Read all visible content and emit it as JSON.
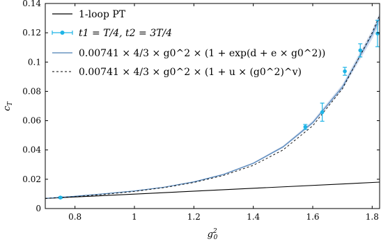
{
  "chart_data": {
    "type": "line",
    "xlabel": "g0^2",
    "ylabel": "c_T",
    "xlim": [
      0.7,
      1.825
    ],
    "ylim": [
      0,
      0.14
    ],
    "x_ticks": [
      0.8,
      1,
      1.2,
      1.4,
      1.6,
      1.8
    ],
    "x_tick_labels": [
      "0.8",
      "1",
      "1.2",
      "1.4",
      "1.6",
      "1.8"
    ],
    "y_ticks": [
      0,
      0.02,
      0.04,
      0.06,
      0.08,
      0.1,
      0.12,
      0.14
    ],
    "y_tick_labels": [
      "0",
      "0.02",
      "0.04",
      "0.06",
      "0.08",
      "0.1",
      "0.12",
      "0.14"
    ],
    "grid": false,
    "legend_position": "top-left",
    "colors": {
      "data": "#1eb4e6",
      "fit": "#4a7fb5",
      "band": "#c6d3ea",
      "pt": "#000000"
    },
    "legend": [
      {
        "key": "pt",
        "text": "1-loop PT"
      },
      {
        "key": "data",
        "text": "t1 = T/4, t2 = 3T/4"
      },
      {
        "key": "fit_exp",
        "text": "0.00741 × 4/3 × g0^2 × (1 + exp(d + e × g0^2))"
      },
      {
        "key": "fit_pow",
        "text": "0.00741 × 4/3 × g0^2 × (1 + u × (g0^2)^v)"
      }
    ],
    "series": [
      {
        "name": "1-loop PT",
        "x": [
          0.7,
          1.825
        ],
        "y": [
          0.00692,
          0.01803
        ]
      },
      {
        "name": "t1 = T/4, t2 = 3T/4",
        "x": [
          0.751,
          1.575,
          1.632,
          1.708,
          1.76,
          1.818
        ],
        "y": [
          0.0075,
          0.0557,
          0.0658,
          0.0937,
          0.108,
          0.1195
        ],
        "yerr": [
          0.0006,
          0.0017,
          0.0062,
          0.0027,
          0.0045,
          0.009
        ]
      },
      {
        "name": "0.00741 × 4/3 × g0^2 × (1 + exp(d + e × g0^2))",
        "x": [
          0.7,
          0.8,
          0.9,
          1.0,
          1.1,
          1.2,
          1.3,
          1.4,
          1.5,
          1.6,
          1.7,
          1.8,
          1.825
        ],
        "y": [
          0.007,
          0.0084,
          0.0101,
          0.012,
          0.0146,
          0.0182,
          0.0233,
          0.0309,
          0.0421,
          0.0587,
          0.083,
          0.1188,
          0.13
        ],
        "band_halfwidth": [
          0.0002,
          0.0002,
          0.0002,
          0.0003,
          0.0003,
          0.0004,
          0.0005,
          0.0006,
          0.0008,
          0.0012,
          0.0018,
          0.003,
          0.0035
        ]
      },
      {
        "name": "0.00741 × 4/3 × g0^2 × (1 + u × (g0^2)^v)",
        "x": [
          0.7,
          0.8,
          0.9,
          1.0,
          1.1,
          1.2,
          1.3,
          1.4,
          1.5,
          1.6,
          1.7,
          1.8,
          1.825
        ],
        "y": [
          0.0069,
          0.0081,
          0.0097,
          0.0117,
          0.0143,
          0.0178,
          0.0226,
          0.0295,
          0.04,
          0.0565,
          0.0818,
          0.12,
          0.132
        ]
      }
    ]
  }
}
